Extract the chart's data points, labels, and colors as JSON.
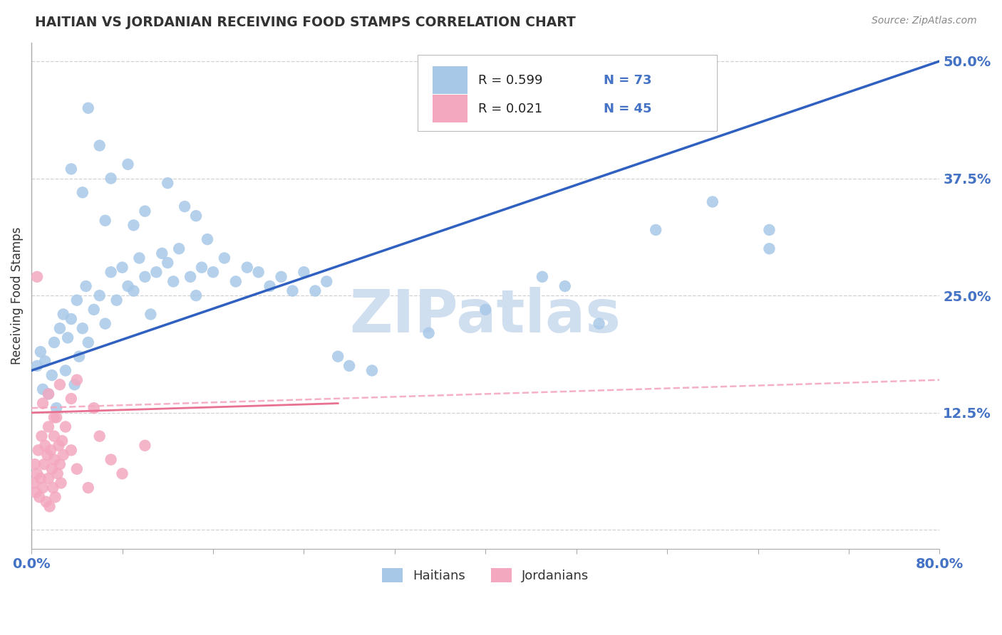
{
  "title": "HAITIAN VS JORDANIAN RECEIVING FOOD STAMPS CORRELATION CHART",
  "source": "Source: ZipAtlas.com",
  "ylabel": "Receiving Food Stamps",
  "xlim": [
    0.0,
    80.0
  ],
  "ylim": [
    -2.0,
    52.0
  ],
  "y_plot_min": 0.0,
  "y_plot_max": 50.0,
  "haitian_color": "#A8C8E8",
  "jordanian_color": "#F4A8C0",
  "haitian_line_color": "#3060C0",
  "jordanian_line_solid_color": "#E87090",
  "jordanian_line_dashed_color": "#F4A8C0",
  "watermark_text": "ZIPatlas",
  "watermark_color": "#D0DFF0",
  "legend_R_haitian": "0.599",
  "legend_N_haitian": "73",
  "legend_R_jordanian": "0.021",
  "legend_N_jordanian": "45",
  "legend_label_haitian": "Haitians",
  "legend_label_jordanian": "Jordanians",
  "haitian_scatter": [
    [
      0.5,
      17.5
    ],
    [
      0.8,
      19.0
    ],
    [
      1.0,
      15.0
    ],
    [
      1.2,
      18.0
    ],
    [
      1.5,
      14.5
    ],
    [
      1.8,
      16.5
    ],
    [
      2.0,
      20.0
    ],
    [
      2.2,
      13.0
    ],
    [
      2.5,
      21.5
    ],
    [
      2.8,
      23.0
    ],
    [
      3.0,
      17.0
    ],
    [
      3.2,
      20.5
    ],
    [
      3.5,
      22.5
    ],
    [
      3.8,
      15.5
    ],
    [
      4.0,
      24.5
    ],
    [
      4.2,
      18.5
    ],
    [
      4.5,
      21.5
    ],
    [
      4.8,
      26.0
    ],
    [
      5.0,
      20.0
    ],
    [
      5.5,
      23.5
    ],
    [
      6.0,
      25.0
    ],
    [
      6.5,
      22.0
    ],
    [
      7.0,
      27.5
    ],
    [
      7.5,
      24.5
    ],
    [
      8.0,
      28.0
    ],
    [
      8.5,
      26.0
    ],
    [
      9.0,
      25.5
    ],
    [
      9.5,
      29.0
    ],
    [
      10.0,
      27.0
    ],
    [
      10.5,
      23.0
    ],
    [
      11.0,
      27.5
    ],
    [
      11.5,
      29.5
    ],
    [
      12.0,
      28.5
    ],
    [
      12.5,
      26.5
    ],
    [
      13.0,
      30.0
    ],
    [
      14.0,
      27.0
    ],
    [
      14.5,
      25.0
    ],
    [
      15.0,
      28.0
    ],
    [
      16.0,
      27.5
    ],
    [
      17.0,
      29.0
    ],
    [
      18.0,
      26.5
    ],
    [
      19.0,
      28.0
    ],
    [
      20.0,
      27.5
    ],
    [
      21.0,
      26.0
    ],
    [
      22.0,
      27.0
    ],
    [
      23.0,
      25.5
    ],
    [
      24.0,
      27.5
    ],
    [
      25.0,
      25.5
    ],
    [
      26.0,
      26.5
    ],
    [
      27.0,
      18.5
    ],
    [
      28.0,
      17.5
    ],
    [
      30.0,
      17.0
    ],
    [
      35.0,
      21.0
    ],
    [
      40.0,
      23.5
    ],
    [
      45.0,
      27.0
    ],
    [
      47.0,
      26.0
    ],
    [
      50.0,
      22.0
    ],
    [
      55.0,
      32.0
    ],
    [
      60.0,
      35.0
    ],
    [
      65.0,
      30.0
    ],
    [
      5.0,
      45.0
    ],
    [
      6.0,
      41.0
    ],
    [
      7.0,
      37.5
    ],
    [
      8.5,
      39.0
    ],
    [
      10.0,
      34.0
    ],
    [
      3.5,
      38.5
    ],
    [
      12.0,
      37.0
    ],
    [
      13.5,
      34.5
    ],
    [
      4.5,
      36.0
    ],
    [
      9.0,
      32.5
    ],
    [
      15.5,
      31.0
    ],
    [
      14.5,
      33.5
    ],
    [
      6.5,
      33.0
    ],
    [
      65.0,
      32.0
    ]
  ],
  "jordanian_scatter": [
    [
      0.2,
      5.0
    ],
    [
      0.3,
      7.0
    ],
    [
      0.4,
      4.0
    ],
    [
      0.5,
      6.0
    ],
    [
      0.6,
      8.5
    ],
    [
      0.7,
      3.5
    ],
    [
      0.8,
      5.5
    ],
    [
      0.9,
      10.0
    ],
    [
      1.0,
      4.5
    ],
    [
      1.1,
      7.0
    ],
    [
      1.2,
      9.0
    ],
    [
      1.3,
      3.0
    ],
    [
      1.4,
      8.0
    ],
    [
      1.5,
      11.0
    ],
    [
      1.5,
      5.5
    ],
    [
      1.6,
      2.5
    ],
    [
      1.7,
      8.5
    ],
    [
      1.8,
      6.5
    ],
    [
      1.9,
      4.5
    ],
    [
      2.0,
      10.0
    ],
    [
      2.0,
      7.5
    ],
    [
      2.1,
      3.5
    ],
    [
      2.2,
      12.0
    ],
    [
      2.3,
      6.0
    ],
    [
      2.4,
      9.0
    ],
    [
      2.5,
      7.0
    ],
    [
      2.6,
      5.0
    ],
    [
      2.7,
      9.5
    ],
    [
      2.8,
      8.0
    ],
    [
      3.0,
      11.0
    ],
    [
      3.5,
      8.5
    ],
    [
      4.0,
      6.5
    ],
    [
      5.0,
      4.5
    ],
    [
      5.5,
      13.0
    ],
    [
      6.0,
      10.0
    ],
    [
      7.0,
      7.5
    ],
    [
      8.0,
      6.0
    ],
    [
      10.0,
      9.0
    ],
    [
      0.5,
      27.0
    ],
    [
      1.0,
      13.5
    ],
    [
      1.5,
      14.5
    ],
    [
      2.0,
      12.0
    ],
    [
      2.5,
      15.5
    ],
    [
      3.5,
      14.0
    ],
    [
      4.0,
      16.0
    ]
  ],
  "haitian_trend": [
    0.0,
    80.0,
    17.0,
    50.0
  ],
  "jordanian_trend_dashed": [
    0.0,
    80.0,
    13.0,
    16.0
  ],
  "jordanian_trend_solid": [
    0.0,
    27.0,
    12.5,
    13.5
  ],
  "grid_color": "#CCCCCC",
  "bg_color": "#FFFFFF",
  "title_color": "#333333",
  "axis_label_color": "#4472C4",
  "legend_R_color": "#4472C4",
  "ytick_positions": [
    0.0,
    12.5,
    25.0,
    37.5,
    50.0
  ],
  "ytick_labels": [
    "",
    "12.5%",
    "25.0%",
    "37.5%",
    "50.0%"
  ]
}
